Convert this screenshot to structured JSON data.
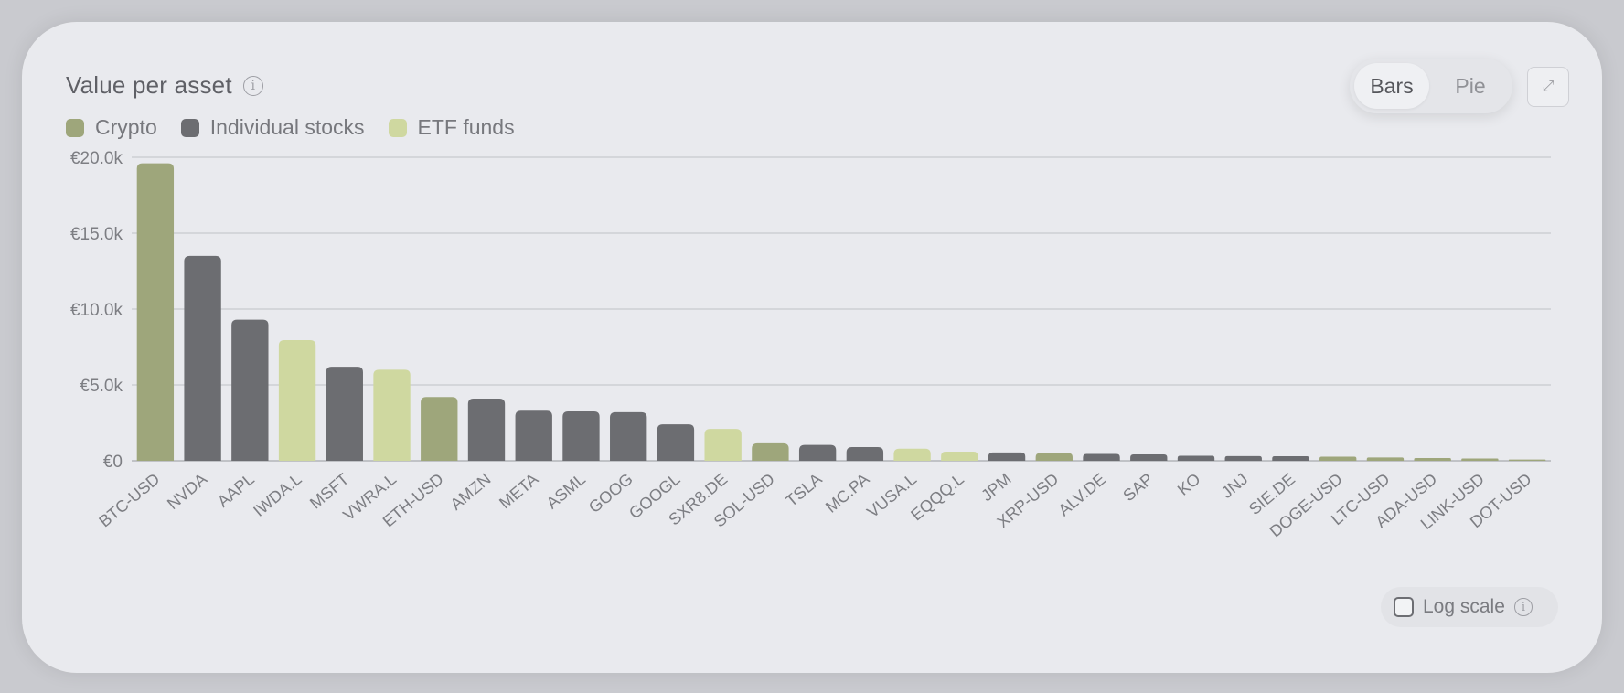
{
  "header": {
    "title": "Value per asset",
    "info_icon": "info-icon"
  },
  "legend": [
    {
      "label": "Crypto",
      "color": "#9ea67b"
    },
    {
      "label": "Individual stocks",
      "color": "#6c6d71"
    },
    {
      "label": "ETF funds",
      "color": "#cfd8a0"
    }
  ],
  "view_toggle": {
    "options": [
      "Bars",
      "Pie"
    ],
    "selected": "Bars"
  },
  "expand_icon": "expand-icon",
  "log_scale": {
    "label": "Log scale",
    "checked": false,
    "info_icon": "info-icon"
  },
  "chart_data": {
    "type": "bar",
    "ylim": [
      0,
      20000
    ],
    "yticks": [
      "€0",
      "€5.0k",
      "€10.0k",
      "€15.0k",
      "€20.0k"
    ],
    "yticks_values": [
      0,
      5000,
      10000,
      15000,
      20000
    ],
    "grid": true,
    "legend_position": "top-left",
    "categories": [
      "BTC-USD",
      "NVDA",
      "AAPL",
      "IWDA.L",
      "MSFT",
      "VWRA.L",
      "ETH-USD",
      "AMZN",
      "META",
      "ASML",
      "GOOG",
      "GOOGL",
      "SXR8.DE",
      "SOL-USD",
      "TSLA",
      "MC.PA",
      "VUSA.L",
      "EQQQ.L",
      "JPM",
      "XRP-USD",
      "ALV.DE",
      "SAP",
      "KO",
      "JNJ",
      "SIE.DE",
      "DOGE-USD",
      "LTC-USD",
      "ADA-USD",
      "LINK-USD",
      "DOT-USD"
    ],
    "values": [
      19600,
      13500,
      9300,
      7950,
      6200,
      6000,
      4200,
      4100,
      3300,
      3250,
      3200,
      2400,
      2100,
      1150,
      1050,
      900,
      800,
      600,
      550,
      500,
      450,
      420,
      330,
      310,
      300,
      270,
      220,
      180,
      150,
      80
    ],
    "groups": [
      "Crypto",
      "Individual stocks",
      "Individual stocks",
      "ETF funds",
      "Individual stocks",
      "ETF funds",
      "Crypto",
      "Individual stocks",
      "Individual stocks",
      "Individual stocks",
      "Individual stocks",
      "Individual stocks",
      "ETF funds",
      "Crypto",
      "Individual stocks",
      "Individual stocks",
      "ETF funds",
      "ETF funds",
      "Individual stocks",
      "Crypto",
      "Individual stocks",
      "Individual stocks",
      "Individual stocks",
      "Individual stocks",
      "Individual stocks",
      "Crypto",
      "Crypto",
      "Crypto",
      "Crypto",
      "Crypto"
    ]
  }
}
